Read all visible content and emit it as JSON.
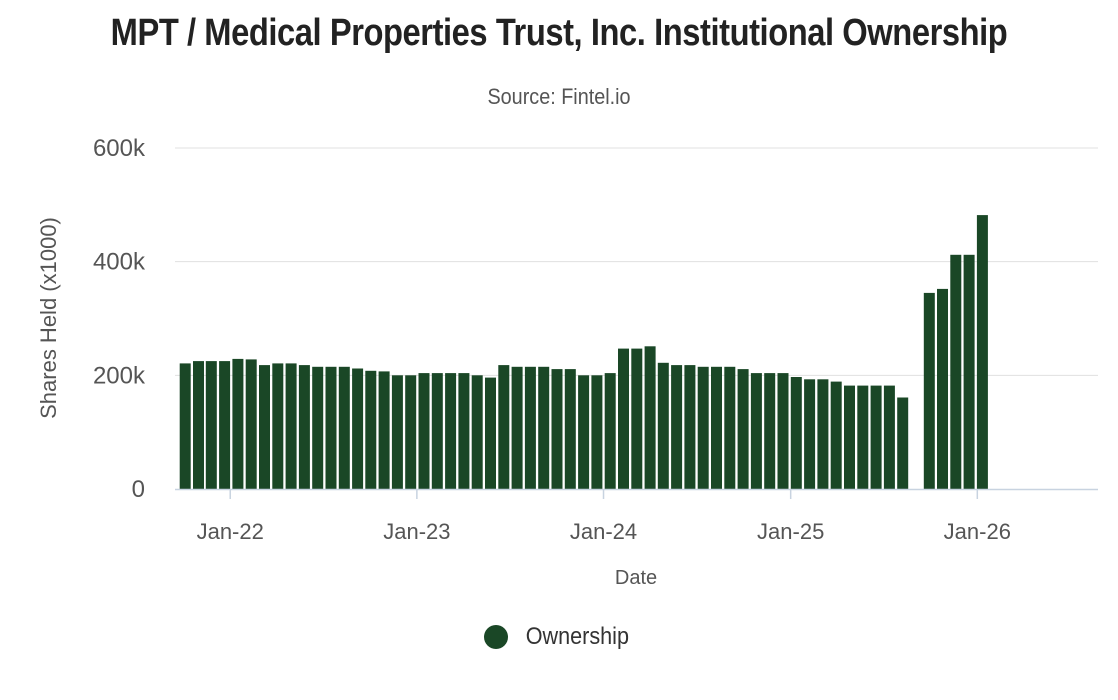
{
  "page": {
    "title": "MPT / Medical Properties Trust, Inc. Institutional Ownership",
    "subtitle": "Source: Fintel.io"
  },
  "legend": {
    "label": "Ownership",
    "color": "#1a4726"
  },
  "chart_data": {
    "type": "bar",
    "title": "MPT / Medical Properties Trust, Inc. Institutional Ownership",
    "subtitle": "Source: Fintel.io",
    "xlabel": "Date",
    "ylabel": "Shares Held (x1000)",
    "ylim": [
      0,
      600000
    ],
    "yticks": [
      {
        "value": 0,
        "label": "0"
      },
      {
        "value": 200000,
        "label": "200k"
      },
      {
        "value": 400000,
        "label": "400k"
      },
      {
        "value": 600000,
        "label": "600k"
      }
    ],
    "xlim": [
      "2021-09-15",
      "2026-08-25"
    ],
    "xticks": [
      {
        "date": "2022-01-01",
        "label": "Jan-22"
      },
      {
        "date": "2023-01-01",
        "label": "Jan-23"
      },
      {
        "date": "2024-01-01",
        "label": "Jan-24"
      },
      {
        "date": "2025-01-01",
        "label": "Jan-25"
      },
      {
        "date": "2026-01-01",
        "label": "Jan-26"
      }
    ],
    "grid": true,
    "legend_position": "bottom",
    "series": [
      {
        "name": "Ownership",
        "color": "#1a4726",
        "x": [
          "2021-10-05",
          "2021-10-31",
          "2021-11-25",
          "2021-12-21",
          "2022-01-16",
          "2022-02-11",
          "2022-03-09",
          "2022-04-04",
          "2022-04-30",
          "2022-05-26",
          "2022-06-21",
          "2022-07-17",
          "2022-08-12",
          "2022-09-07",
          "2022-10-03",
          "2022-10-29",
          "2022-11-24",
          "2022-12-20",
          "2023-01-15",
          "2023-02-10",
          "2023-03-08",
          "2023-04-03",
          "2023-04-29",
          "2023-05-25",
          "2023-06-20",
          "2023-07-16",
          "2023-08-11",
          "2023-09-06",
          "2023-10-02",
          "2023-10-28",
          "2023-11-23",
          "2023-12-19",
          "2024-01-14",
          "2024-02-09",
          "2024-03-06",
          "2024-04-01",
          "2024-04-27",
          "2024-05-23",
          "2024-06-18",
          "2024-07-14",
          "2024-08-09",
          "2024-09-04",
          "2024-09-30",
          "2024-10-26",
          "2024-11-21",
          "2024-12-17",
          "2025-01-12",
          "2025-02-07",
          "2025-03-05",
          "2025-03-31",
          "2025-04-26",
          "2025-05-22",
          "2025-06-17",
          "2025-07-13",
          "2025-08-08",
          "2025-09-03",
          "2025-09-29",
          "2025-10-25",
          "2025-11-20",
          "2025-12-16",
          "2026-01-11",
          "2026-02-06",
          "2026-04-02",
          "2026-04-28",
          "2026-05-24",
          "2026-06-19",
          "2026-07-15",
          "2026-08-10"
        ],
        "values": [
          221000,
          225000,
          225000,
          225000,
          229000,
          228000,
          218000,
          221000,
          221000,
          218000,
          215000,
          215000,
          215000,
          212000,
          208000,
          207000,
          200000,
          200000,
          204000,
          204000,
          204000,
          204000,
          200000,
          196000,
          218000,
          215000,
          215000,
          215000,
          211000,
          211000,
          200000,
          200000,
          204000,
          247000,
          247000,
          251000,
          222000,
          218000,
          218000,
          215000,
          215000,
          215000,
          211000,
          204000,
          204000,
          204000,
          197000,
          193000,
          193000,
          189000,
          182000,
          182000,
          182000,
          182000,
          161000,
          0,
          345000,
          352000,
          412000,
          412000,
          482000,
          0,
          0,
          0,
          0,
          0,
          0,
          0
        ]
      }
    ]
  }
}
